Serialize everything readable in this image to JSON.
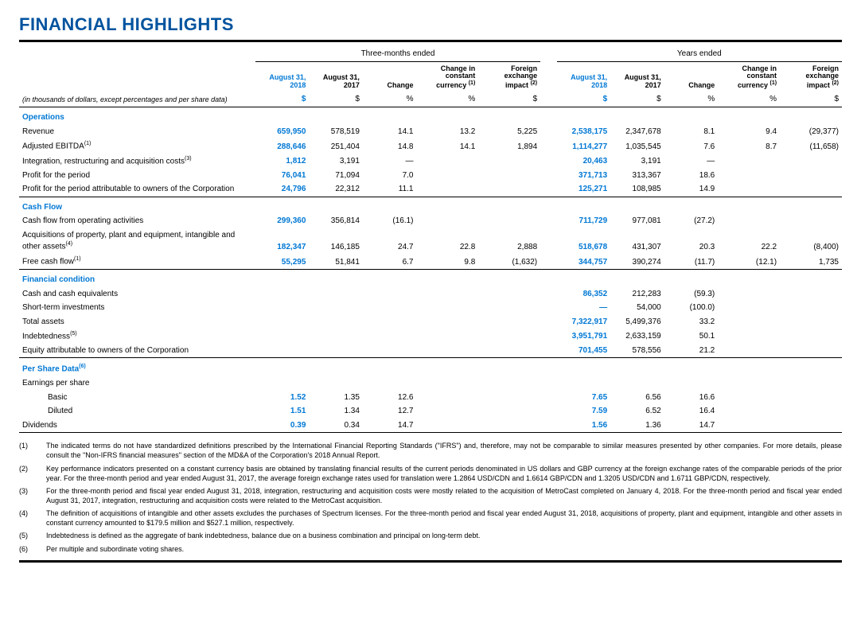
{
  "title": "FINANCIAL HIGHLIGHTS",
  "caption": "(in thousands of dollars, except percentages and per share data)",
  "group_headers": {
    "three_months": "Three-months ended",
    "years": "Years ended"
  },
  "col_headers": {
    "aug18": "August 31,\n2018",
    "aug17": "August 31,\n2017",
    "change": "Change",
    "change_cc": "Change in\nconstant\ncurrency",
    "fx": "Foreign\nexchange\nimpact",
    "sup1": "(1)",
    "sup2": "(2)"
  },
  "units": {
    "dollar": "$",
    "pct": "%"
  },
  "sections": {
    "operations": "Operations",
    "cashflow": "Cash Flow",
    "fincond": "Financial condition",
    "pershare": "Per Share Data",
    "eps": "Earnings per share"
  },
  "rows": {
    "revenue": {
      "label": "Revenue",
      "q": [
        "659,950",
        "578,519",
        "14.1",
        "13.2",
        "5,225"
      ],
      "y": [
        "2,538,175",
        "2,347,678",
        "8.1",
        "9.4",
        "(29,377)"
      ]
    },
    "ebitda": {
      "label": "Adjusted EBITDA",
      "sup": "(1)",
      "q": [
        "288,646",
        "251,404",
        "14.8",
        "14.1",
        "1,894"
      ],
      "y": [
        "1,114,277",
        "1,035,545",
        "7.6",
        "8.7",
        "(11,658)"
      ]
    },
    "integ": {
      "label": "Integration, restructuring and acquisition costs",
      "sup": "(3)",
      "q": [
        "1,812",
        "3,191",
        "—",
        "",
        ""
      ],
      "y": [
        "20,463",
        "3,191",
        "—",
        "",
        ""
      ]
    },
    "profit": {
      "label": "Profit for the period",
      "q": [
        "76,041",
        "71,094",
        "7.0",
        "",
        ""
      ],
      "y": [
        "371,713",
        "313,367",
        "18.6",
        "",
        ""
      ]
    },
    "profitown": {
      "label": "Profit for the period attributable to owners of the Corporation",
      "q": [
        "24,796",
        "22,312",
        "11.1",
        "",
        ""
      ],
      "y": [
        "125,271",
        "108,985",
        "14.9",
        "",
        ""
      ]
    },
    "cfops": {
      "label": "Cash flow from operating activities",
      "q": [
        "299,360",
        "356,814",
        "(16.1)",
        "",
        ""
      ],
      "y": [
        "711,729",
        "977,081",
        "(27.2)",
        "",
        ""
      ]
    },
    "acq": {
      "label": "Acquisitions of property, plant and equipment, intangible and other assets",
      "sup": "(4)",
      "q": [
        "182,347",
        "146,185",
        "24.7",
        "22.8",
        "2,888"
      ],
      "y": [
        "518,678",
        "431,307",
        "20.3",
        "22.2",
        "(8,400)"
      ]
    },
    "fcf": {
      "label": "Free cash flow",
      "sup": "(1)",
      "q": [
        "55,295",
        "51,841",
        "6.7",
        "9.8",
        "(1,632)"
      ],
      "y": [
        "344,757",
        "390,274",
        "(11.7)",
        "(12.1)",
        "1,735"
      ]
    },
    "cash": {
      "label": "Cash and cash equivalents",
      "y": [
        "86,352",
        "212,283",
        "(59.3)",
        "",
        ""
      ]
    },
    "stinv": {
      "label": "Short-term investments",
      "y": [
        "—",
        "54,000",
        "(100.0)",
        "",
        ""
      ]
    },
    "tassets": {
      "label": "Total assets",
      "y": [
        "7,322,917",
        "5,499,376",
        "33.2",
        "",
        ""
      ]
    },
    "indebt": {
      "label": "Indebtedness",
      "sup": "(5)",
      "y": [
        "3,951,791",
        "2,633,159",
        "50.1",
        "",
        ""
      ]
    },
    "equity": {
      "label": "Equity attributable to owners of the Corporation",
      "y": [
        "701,455",
        "578,556",
        "21.2",
        "",
        ""
      ]
    },
    "basic": {
      "label": "Basic",
      "q": [
        "1.52",
        "1.35",
        "12.6",
        "",
        ""
      ],
      "y": [
        "7.65",
        "6.56",
        "16.6",
        "",
        ""
      ]
    },
    "diluted": {
      "label": "Diluted",
      "q": [
        "1.51",
        "1.34",
        "12.7",
        "",
        ""
      ],
      "y": [
        "7.59",
        "6.52",
        "16.4",
        "",
        ""
      ]
    },
    "div": {
      "label": "Dividends",
      "q": [
        "0.39",
        "0.34",
        "14.7",
        "",
        ""
      ],
      "y": [
        "1.56",
        "1.36",
        "14.7",
        "",
        ""
      ]
    }
  },
  "pershare_sup": "(6)",
  "footnotes": [
    {
      "n": "(1)",
      "t": "The indicated terms do not have standardized definitions prescribed by the International Financial Reporting Standards (\"IFRS\") and, therefore, may not be comparable to similar measures presented by other companies. For more details, please consult the \"Non-IFRS financial measures\" section of the MD&A of the Corporation's 2018 Annual Report."
    },
    {
      "n": "(2)",
      "t": "Key performance indicators presented on a constant currency basis are obtained by translating financial results of the current periods denominated in US dollars and GBP currency at the foreign exchange rates of the comparable periods of the prior year. For the three-month period and year ended August 31, 2017, the average foreign exchange rates used for translation were 1.2864 USD/CDN and 1.6614 GBP/CDN and 1.3205 USD/CDN and 1.6711 GBP/CDN, respectively."
    },
    {
      "n": "(3)",
      "t": "For the three-month period and fiscal year ended August 31, 2018, integration, restructuring and acquisition costs were mostly related to the  acquisition of MetroCast completed on January 4, 2018. For the three-month period and fiscal year ended August 31, 2017, integration, restructuring and acquisition costs were related to the MetroCast acquisition."
    },
    {
      "n": "(4)",
      "t": "The definition of acquisitions of intangible and other assets excludes the purchases of Spectrum licenses. For the three-month period and fiscal year ended August 31, 2018, acquisitions of property, plant and equipment, intangible and other assets in constant currency amounted to $179.5 million and $527.1 million, respectively."
    },
    {
      "n": "(5)",
      "t": "Indebtedness is defined as the aggregate of bank indebtedness, balance due on a business combination and principal on long-term debt."
    },
    {
      "n": "(6)",
      "t": "Per multiple and subordinate voting shares."
    }
  ]
}
